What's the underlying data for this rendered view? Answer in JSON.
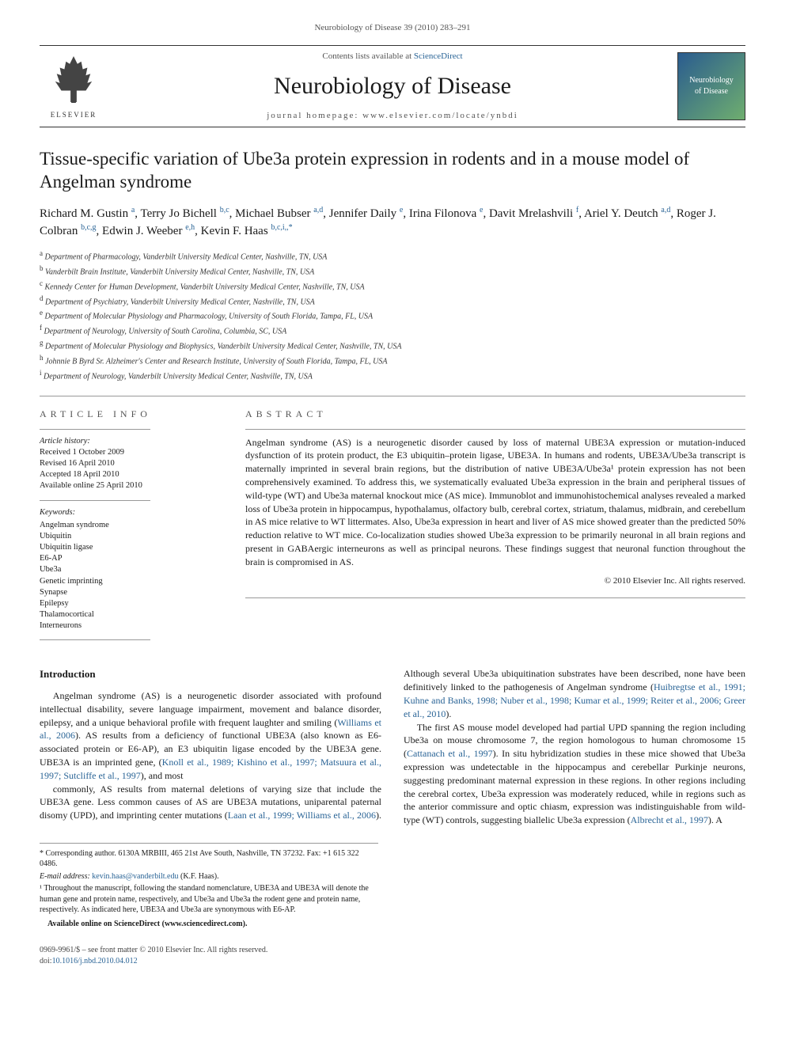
{
  "page": {
    "running_head": "Neurobiology of Disease 39 (2010) 283–291",
    "font_family": "Georgia, 'Times New Roman', serif",
    "text_color": "#1a1a1a",
    "bg_color": "#ffffff",
    "link_color": "#2a6496"
  },
  "masthead": {
    "contents_prefix": "Contents lists available at ",
    "contents_link": "ScienceDirect",
    "journal_name": "Neurobiology of Disease",
    "homepage_line": "journal homepage: www.elsevier.com/locate/ynbdi",
    "publisher_label": "ELSEVIER",
    "cover_text_top": "Neurobiology",
    "cover_text_bottom": "of Disease",
    "logo_colors": {
      "tree_fill": "#444444",
      "cover_grad_a": "#2a5c8f",
      "cover_grad_b": "#6fae6f"
    },
    "border_color": "#333333"
  },
  "title": "Tissue-specific variation of Ube3a protein expression in rodents and in a mouse model of Angelman syndrome",
  "authors_html_parts": [
    {
      "name": "Richard M. Gustin",
      "aff": "a"
    },
    {
      "name": "Terry Jo Bichell",
      "aff": "b,c"
    },
    {
      "name": "Michael Bubser",
      "aff": "a,d"
    },
    {
      "name": "Jennifer Daily",
      "aff": "e"
    },
    {
      "name": "Irina Filonova",
      "aff": "e"
    },
    {
      "name": "Davit Mrelashvili",
      "aff": "f"
    },
    {
      "name": "Ariel Y. Deutch",
      "aff": "a,d"
    },
    {
      "name": "Roger J. Colbran",
      "aff": "b,c,g"
    },
    {
      "name": "Edwin J. Weeber",
      "aff": "e,h"
    },
    {
      "name": "Kevin F. Haas",
      "aff": "b,c,i,*"
    }
  ],
  "affiliations": [
    {
      "key": "a",
      "text": "Department of Pharmacology, Vanderbilt University Medical Center, Nashville, TN, USA"
    },
    {
      "key": "b",
      "text": "Vanderbilt Brain Institute, Vanderbilt University Medical Center, Nashville, TN, USA"
    },
    {
      "key": "c",
      "text": "Kennedy Center for Human Development, Vanderbilt University Medical Center, Nashville, TN, USA"
    },
    {
      "key": "d",
      "text": "Department of Psychiatry, Vanderbilt University Medical Center, Nashville, TN, USA"
    },
    {
      "key": "e",
      "text": "Department of Molecular Physiology and Pharmacology, University of South Florida, Tampa, FL, USA"
    },
    {
      "key": "f",
      "text": "Department of Neurology, University of South Carolina, Columbia, SC, USA"
    },
    {
      "key": "g",
      "text": "Department of Molecular Physiology and Biophysics, Vanderbilt University Medical Center, Nashville, TN, USA"
    },
    {
      "key": "h",
      "text": "Johnnie B Byrd Sr. Alzheimer's Center and Research Institute, University of South Florida, Tampa, FL, USA"
    },
    {
      "key": "i",
      "text": "Department of Neurology, Vanderbilt University Medical Center, Nashville, TN, USA"
    }
  ],
  "article_info": {
    "section_head": "ARTICLE INFO",
    "history_label": "Article history:",
    "history": [
      "Received 1 October 2009",
      "Revised 16 April 2010",
      "Accepted 18 April 2010",
      "Available online 25 April 2010"
    ],
    "keywords_label": "Keywords:",
    "keywords": [
      "Angelman syndrome",
      "Ubiquitin",
      "Ubiquitin ligase",
      "E6-AP",
      "Ube3a",
      "Genetic imprinting",
      "Synapse",
      "Epilepsy",
      "Thalamocortical",
      "Interneurons"
    ]
  },
  "abstract": {
    "section_head": "ABSTRACT",
    "text": "Angelman syndrome (AS) is a neurogenetic disorder caused by loss of maternal UBE3A expression or mutation-induced dysfunction of its protein product, the E3 ubiquitin–protein ligase, UBE3A. In humans and rodents, UBE3A/Ube3a transcript is maternally imprinted in several brain regions, but the distribution of native UBE3A/Ube3a¹ protein expression has not been comprehensively examined. To address this, we systematically evaluated Ube3a expression in the brain and peripheral tissues of wild-type (WT) and Ube3a maternal knockout mice (AS mice). Immunoblot and immunohistochemical analyses revealed a marked loss of Ube3a protein in hippocampus, hypothalamus, olfactory bulb, cerebral cortex, striatum, thalamus, midbrain, and cerebellum in AS mice relative to WT littermates. Also, Ube3a expression in heart and liver of AS mice showed greater than the predicted 50% reduction relative to WT mice. Co-localization studies showed Ube3a expression to be primarily neuronal in all brain regions and present in GABAergic interneurons as well as principal neurons. These findings suggest that neuronal function throughout the brain is compromised in AS.",
    "copyright": "© 2010 Elsevier Inc. All rights reserved."
  },
  "body": {
    "heading": "Introduction",
    "p1_pre": "Angelman syndrome (AS) is a neurogenetic disorder associated with profound intellectual disability, severe language impairment, movement and balance disorder, epilepsy, and a unique behavioral profile with frequent laughter and smiling (",
    "p1_link1": "Williams et al., 2006",
    "p1_mid1": "). AS results from a deficiency of functional UBE3A (also known as E6-associated protein or E6-AP), an E3 ubiquitin ligase encoded by the UBE3A gene. UBE3A is an imprinted gene, (",
    "p1_link2": "Knoll et al., 1989; Kishino et al., 1997; Matsuura et al., 1997; Sutcliffe et al., 1997",
    "p1_post": "), and most",
    "p2_pre": "commonly, AS results from maternal deletions of varying size that include the UBE3A gene. Less common causes of AS are UBE3A mutations, uniparental paternal disomy (UPD), and imprinting center mutations (",
    "p2_link1": "Laan et al., 1999; Williams et al., 2006",
    "p2_mid1": "). Although several Ube3a ubiquitination substrates have been described, none have been definitively linked to the pathogenesis of Angelman syndrome (",
    "p2_link2": "Huibregtse et al., 1991; Kuhne and Banks, 1998; Nuber et al., 1998; Kumar et al., 1999; Reiter et al., 2006; Greer et al., 2010",
    "p2_post": ").",
    "p3_pre": "The first AS mouse model developed had partial UPD spanning the region including Ube3a on mouse chromosome 7, the region homologous to human chromosome 15 (",
    "p3_link1": "Cattanach et al., 1997",
    "p3_mid1": "). In situ hybridization studies in these mice showed that Ube3a expression was undetectable in the hippocampus and cerebellar Purkinje neurons, suggesting predominant maternal expression in these regions. In other regions including the cerebral cortex, Ube3a expression was moderately reduced, while in regions such as the anterior commissure and optic chiasm, expression was indistinguishable from wild-type (WT) controls, suggesting biallelic Ube3a expression (",
    "p3_link2": "Albrecht et al., 1997",
    "p3_post": "). A"
  },
  "footnotes": {
    "corr": "* Corresponding author. 6130A MRBIII, 465 21st Ave South, Nashville, TN 37232. Fax: +1 615 322 0486.",
    "email_label": "E-mail address: ",
    "email": "kevin.haas@vanderbilt.edu",
    "email_suffix": " (K.F. Haas).",
    "note1": "¹ Throughout the manuscript, following the standard nomenclature, UBE3A and UBE3A will denote the human gene and protein name, respectively, and Ube3a and Ube3a the rodent gene and protein name, respectively. As indicated here, UBE3A and Ube3a are synonymous with E6-AP.",
    "avail": "Available online on ScienceDirect (www.sciencedirect.com)."
  },
  "page_foot": {
    "line1": "0969-9961/$ – see front matter © 2010 Elsevier Inc. All rights reserved.",
    "doi_label": "doi:",
    "doi": "10.1016/j.nbd.2010.04.012"
  }
}
